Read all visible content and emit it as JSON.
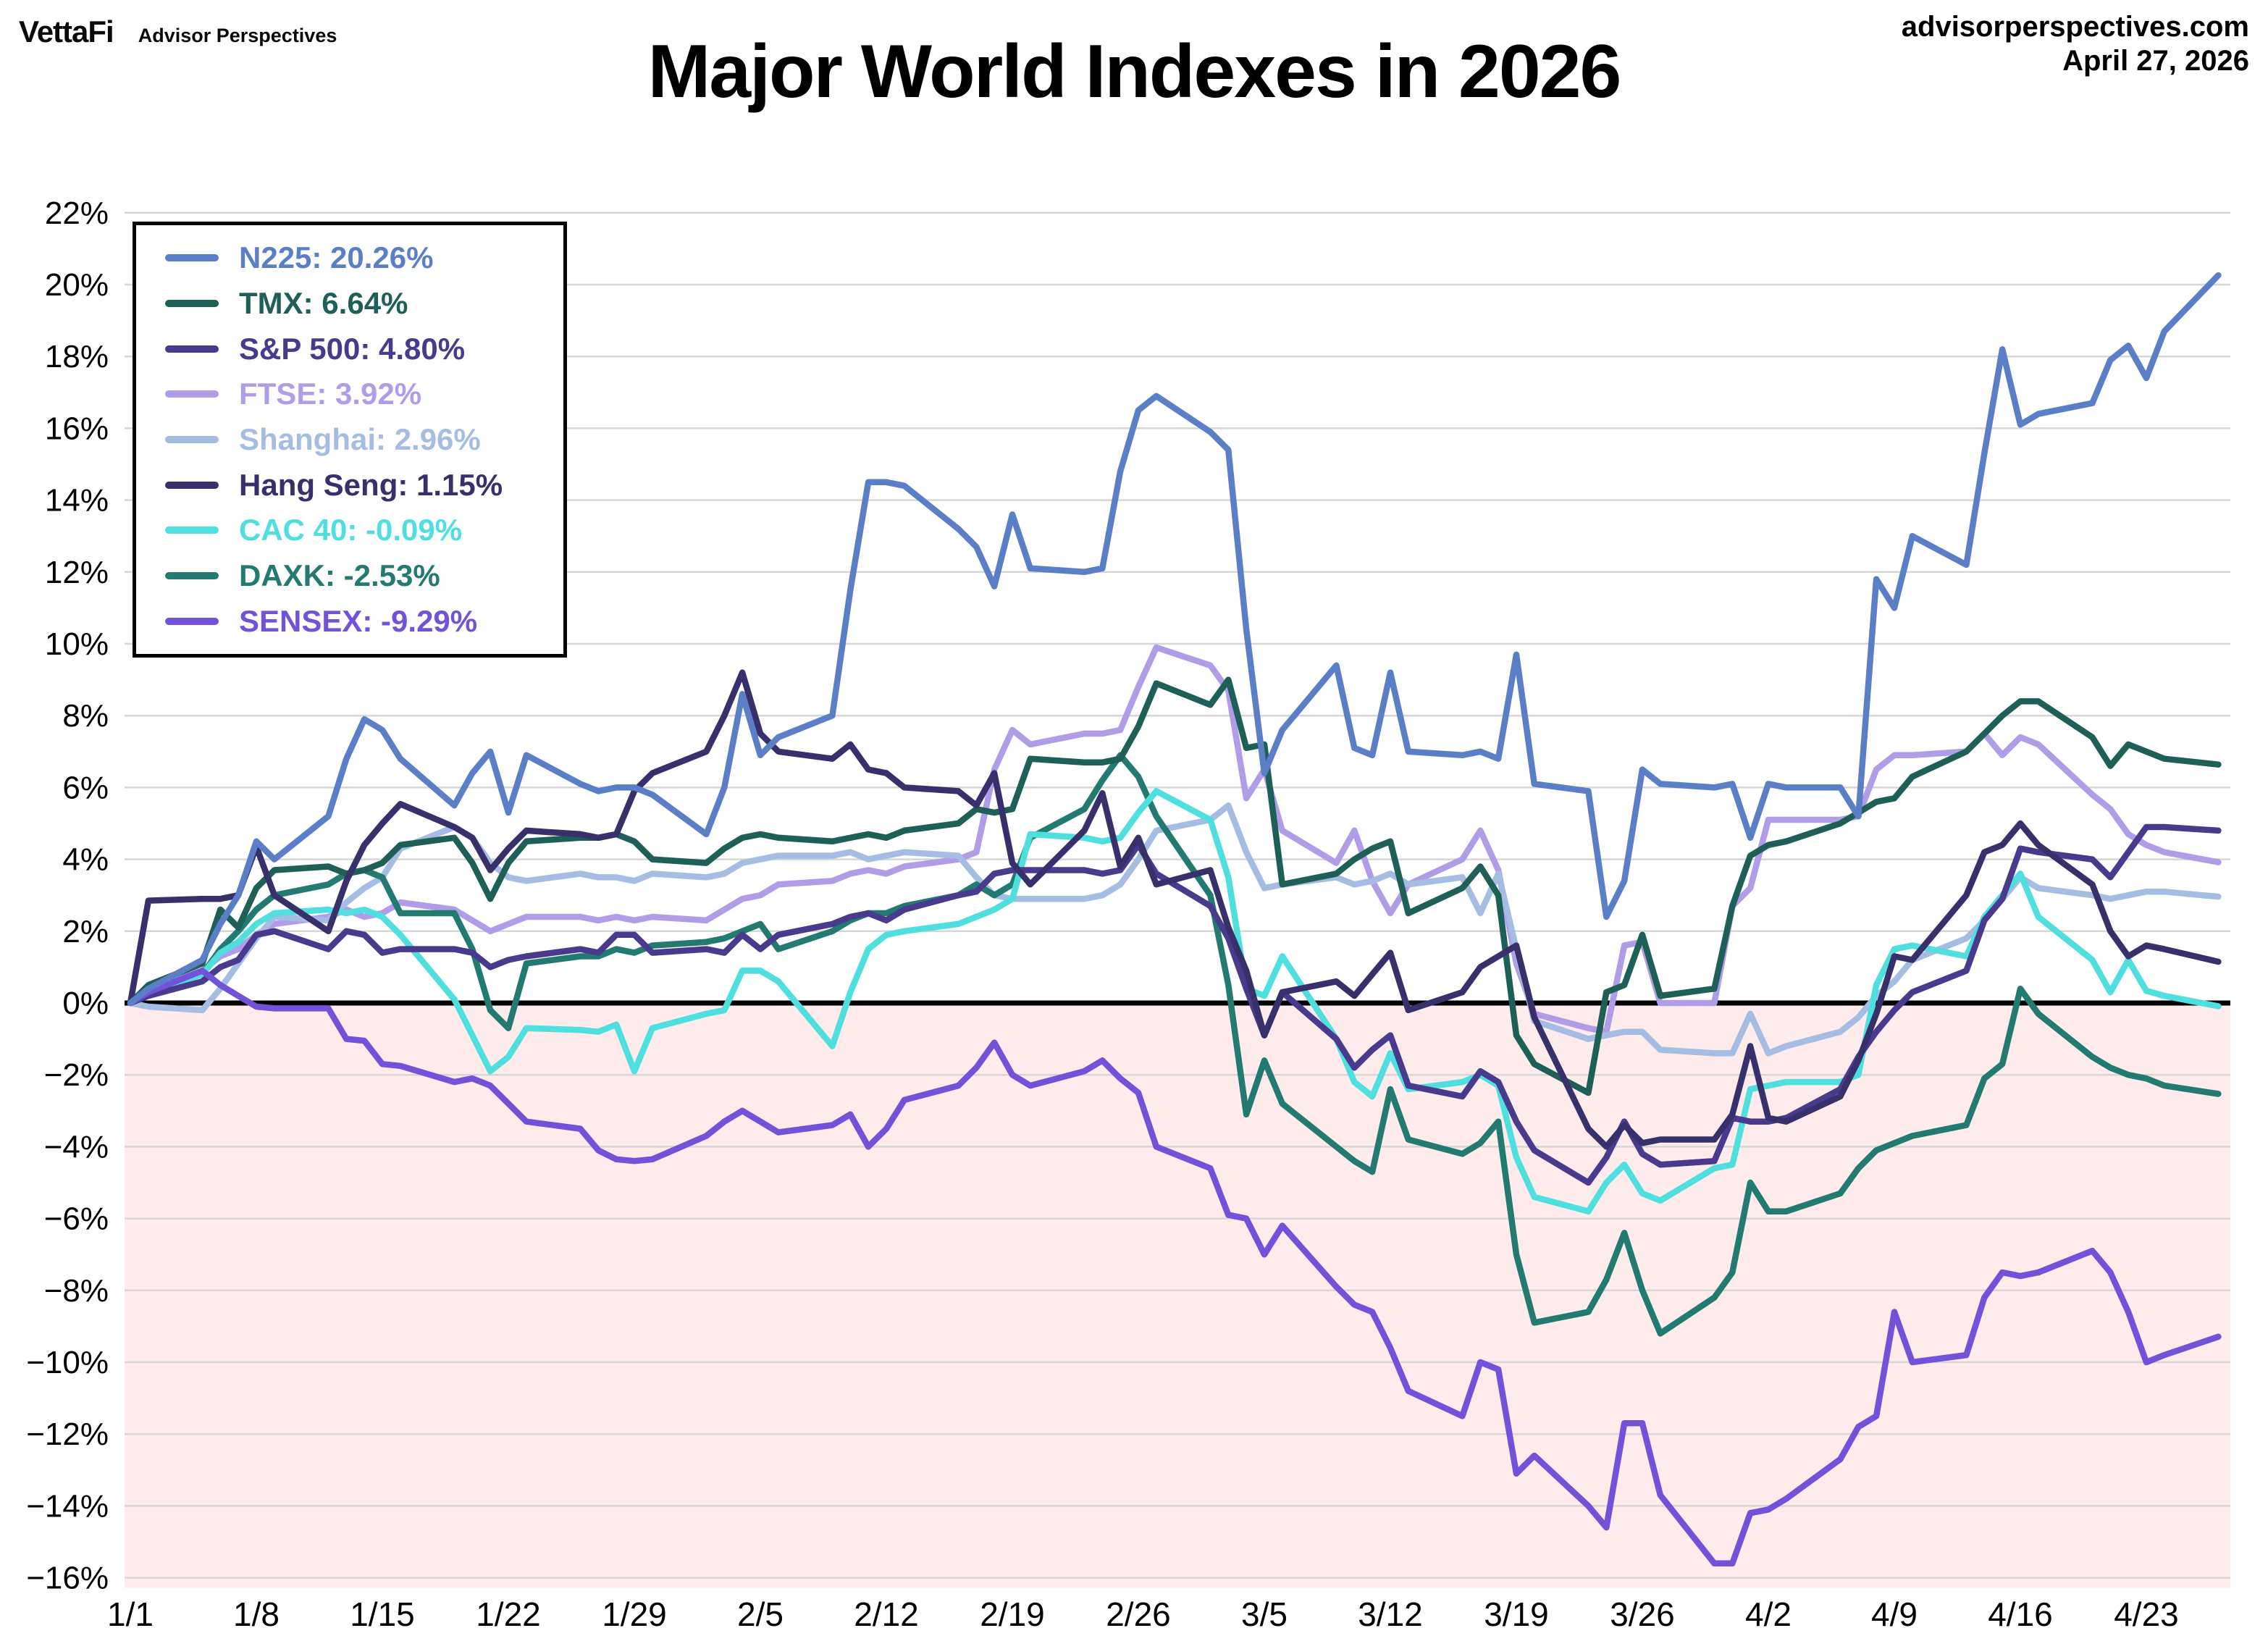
{
  "header": {
    "logo_primary": "VettaFi",
    "logo_secondary": "Advisor Perspectives",
    "site": "advisorperspectives.com",
    "date": "April 27, 2026"
  },
  "title": "Major World Indexes in 2026",
  "chart_data": {
    "type": "line",
    "title": "Major World Indexes in 2026",
    "xlabel": "",
    "ylabel": "",
    "ylim": [
      -16,
      22
    ],
    "ytick_step": 2,
    "ytick_suffix": "%",
    "grid": true,
    "legend_position": "top-left",
    "below_zero_fill": "#fdeceb",
    "zero_line_color": "#000000",
    "gridline_color": "#d6d6d6",
    "xticks": [
      "1/1",
      "1/8",
      "1/15",
      "1/22",
      "1/29",
      "2/5",
      "2/12",
      "2/19",
      "2/26",
      "3/5",
      "3/12",
      "3/19",
      "3/26",
      "4/2",
      "4/9",
      "4/16",
      "4/23"
    ],
    "x": [
      "1/1",
      "1/2",
      "1/5",
      "1/6",
      "1/7",
      "1/8",
      "1/9",
      "1/12",
      "1/13",
      "1/14",
      "1/15",
      "1/16",
      "1/19",
      "1/20",
      "1/21",
      "1/22",
      "1/23",
      "1/26",
      "1/27",
      "1/28",
      "1/29",
      "1/30",
      "2/2",
      "2/3",
      "2/4",
      "2/5",
      "2/6",
      "2/9",
      "2/10",
      "2/11",
      "2/12",
      "2/13",
      "2/16",
      "2/17",
      "2/18",
      "2/19",
      "2/20",
      "2/23",
      "2/24",
      "2/25",
      "2/26",
      "2/27",
      "3/2",
      "3/3",
      "3/4",
      "3/5",
      "3/6",
      "3/9",
      "3/10",
      "3/11",
      "3/12",
      "3/13",
      "3/16",
      "3/17",
      "3/18",
      "3/19",
      "3/20",
      "3/23",
      "3/24",
      "3/25",
      "3/26",
      "3/27",
      "3/30",
      "3/31",
      "4/1",
      "4/2",
      "4/3",
      "4/6",
      "4/7",
      "4/8",
      "4/9",
      "4/10",
      "4/13",
      "4/14",
      "4/15",
      "4/16",
      "4/17",
      "4/20",
      "4/21",
      "4/22",
      "4/23",
      "4/24",
      "4/27"
    ],
    "series": [
      {
        "name": "FTSE",
        "legend_label": "FTSE: 3.92%",
        "final_pct": 3.92,
        "color": "#b19ce8",
        "values": [
          0,
          0.4,
          0.9,
          1.3,
          1.5,
          1.9,
          2.2,
          2.4,
          2.6,
          2.4,
          2.5,
          2.8,
          2.6,
          2.3,
          2.0,
          2.2,
          2.4,
          2.4,
          2.3,
          2.4,
          2.3,
          2.4,
          2.3,
          2.6,
          2.9,
          3.0,
          3.3,
          3.4,
          3.6,
          3.7,
          3.6,
          3.8,
          4.0,
          4.2,
          6.5,
          7.6,
          7.2,
          7.5,
          7.5,
          7.6,
          8.8,
          9.9,
          9.4,
          8.7,
          5.7,
          6.5,
          4.8,
          3.9,
          4.8,
          3.4,
          2.5,
          3.3,
          4.0,
          4.8,
          3.7,
          1.1,
          -0.3,
          -0.7,
          -0.8,
          1.6,
          1.7,
          0.0,
          0.0,
          2.7,
          3.2,
          5.1,
          5.1,
          5.1,
          5.2,
          6.5,
          6.9,
          6.9,
          7.0,
          7.5,
          6.9,
          7.4,
          7.2,
          5.8,
          5.4,
          4.7,
          4.4,
          4.2,
          3.92
        ]
      },
      {
        "name": "Shanghai",
        "legend_label": "Shanghai: 2.96%",
        "final_pct": 2.96,
        "color": "#a5bde2",
        "values": [
          0,
          -0.1,
          -0.2,
          0.4,
          1.1,
          1.8,
          2.4,
          2.3,
          2.8,
          3.2,
          3.5,
          4.3,
          4.9,
          4.6,
          3.9,
          3.5,
          3.4,
          3.6,
          3.5,
          3.5,
          3.4,
          3.6,
          3.5,
          3.6,
          3.9,
          4.0,
          4.1,
          4.1,
          4.2,
          4.0,
          4.1,
          4.2,
          4.1,
          3.5,
          3.0,
          2.9,
          2.9,
          2.9,
          3.0,
          3.3,
          4.0,
          4.8,
          5.1,
          5.5,
          4.2,
          3.2,
          3.3,
          3.5,
          3.3,
          3.4,
          3.6,
          3.3,
          3.5,
          2.5,
          3.6,
          1.5,
          -0.5,
          -1.0,
          -0.9,
          -0.8,
          -0.8,
          -1.3,
          -1.4,
          -1.4,
          -0.3,
          -1.4,
          -1.2,
          -0.8,
          -0.4,
          0.2,
          0.6,
          1.2,
          1.8,
          2.3,
          2.9,
          3.5,
          3.2,
          3.0,
          2.9,
          3.0,
          3.1,
          3.1,
          2.96
        ]
      },
      {
        "name": "DAXK",
        "legend_label": "DAXK: -2.53%",
        "final_pct": -2.53,
        "color": "#227a70",
        "values": [
          0,
          0.3,
          0.8,
          1.5,
          2.0,
          2.6,
          3.0,
          3.3,
          3.6,
          3.7,
          3.5,
          2.5,
          2.5,
          1.5,
          -0.2,
          -0.7,
          1.1,
          1.3,
          1.3,
          1.5,
          1.4,
          1.6,
          1.7,
          1.8,
          2.0,
          2.2,
          1.5,
          2.0,
          2.3,
          2.5,
          2.5,
          2.7,
          3.0,
          3.3,
          3.0,
          3.3,
          4.6,
          5.4,
          6.2,
          6.9,
          6.3,
          5.2,
          3.0,
          0.5,
          -3.1,
          -1.6,
          -2.8,
          -4.0,
          -4.4,
          -4.7,
          -2.4,
          -3.8,
          -4.2,
          -3.9,
          -3.3,
          -7.0,
          -8.9,
          -8.6,
          -7.7,
          -6.4,
          -8.0,
          -9.2,
          -8.2,
          -7.5,
          -5.0,
          -5.8,
          -5.8,
          -5.3,
          -4.6,
          -4.1,
          -3.9,
          -3.7,
          -3.4,
          -2.1,
          -1.7,
          0.4,
          -0.3,
          -1.5,
          -1.8,
          -2.0,
          -2.1,
          -2.3,
          -2.53
        ]
      },
      {
        "name": "TMX",
        "legend_label": "TMX: 6.64%",
        "final_pct": 6.64,
        "color": "#1e5f58",
        "values": [
          0,
          0.5,
          1.1,
          2.6,
          2.1,
          3.2,
          3.7,
          3.8,
          3.6,
          3.7,
          3.9,
          4.4,
          4.6,
          3.9,
          2.9,
          3.9,
          4.5,
          4.6,
          4.6,
          4.7,
          4.5,
          4.0,
          3.9,
          4.3,
          4.6,
          4.7,
          4.6,
          4.5,
          4.6,
          4.7,
          4.6,
          4.8,
          5.0,
          5.4,
          5.3,
          5.4,
          6.8,
          6.7,
          6.7,
          6.8,
          7.7,
          8.9,
          8.3,
          9.0,
          7.1,
          7.2,
          3.3,
          3.6,
          4.0,
          4.3,
          4.5,
          2.5,
          3.2,
          3.8,
          3.0,
          -0.9,
          -1.7,
          -2.5,
          0.3,
          0.5,
          1.9,
          0.2,
          0.4,
          2.7,
          4.1,
          4.4,
          4.5,
          5.0,
          5.3,
          5.6,
          5.7,
          6.3,
          7.0,
          7.5,
          8.0,
          8.4,
          8.4,
          7.4,
          6.6,
          7.2,
          7.0,
          6.8,
          6.64
        ]
      },
      {
        "name": "CAC 40",
        "legend_label": "CAC 40: -0.09%",
        "final_pct": -0.09,
        "color": "#4fdfde",
        "values": [
          0,
          0.3,
          0.8,
          1.4,
          1.7,
          2.2,
          2.5,
          2.6,
          2.5,
          2.6,
          2.4,
          1.9,
          0.1,
          -0.9,
          -1.9,
          -1.5,
          -0.7,
          -0.75,
          -0.8,
          -0.6,
          -1.9,
          -0.7,
          -0.3,
          -0.2,
          0.9,
          0.9,
          0.6,
          -1.2,
          0.3,
          1.5,
          1.9,
          2.0,
          2.2,
          2.4,
          2.6,
          2.9,
          4.7,
          4.6,
          4.5,
          4.6,
          5.3,
          5.9,
          5.1,
          3.5,
          0.4,
          0.2,
          1.3,
          -1.0,
          -2.2,
          -2.6,
          -1.4,
          -2.4,
          -2.2,
          -2.0,
          -2.3,
          -4.3,
          -5.4,
          -5.8,
          -5.0,
          -4.5,
          -5.3,
          -5.5,
          -4.6,
          -4.5,
          -2.4,
          -2.3,
          -2.2,
          -2.2,
          -2.0,
          0.5,
          1.5,
          1.6,
          1.3,
          2.4,
          3.0,
          3.6,
          2.4,
          1.2,
          0.3,
          1.2,
          0.34,
          0.2,
          -0.09
        ]
      },
      {
        "name": "S&P 500",
        "legend_label": "S&P 500: 4.80%",
        "final_pct": 4.8,
        "color": "#493a8e",
        "values": [
          0,
          0.2,
          0.6,
          1.0,
          1.2,
          1.9,
          2.0,
          1.5,
          2.0,
          1.9,
          1.4,
          1.5,
          1.5,
          1.4,
          1.0,
          1.2,
          1.3,
          1.5,
          1.4,
          1.9,
          1.9,
          1.4,
          1.5,
          1.4,
          1.9,
          1.5,
          1.9,
          2.2,
          2.4,
          2.5,
          2.3,
          2.6,
          3.0,
          3.1,
          3.6,
          3.7,
          3.7,
          3.7,
          3.6,
          3.7,
          4.4,
          3.6,
          2.7,
          1.8,
          0.4,
          -0.9,
          0.3,
          -1.0,
          -1.8,
          -1.3,
          -0.9,
          -2.3,
          -2.6,
          -1.9,
          -2.2,
          -3.3,
          -4.1,
          -5.0,
          -4.3,
          -3.3,
          -4.2,
          -4.5,
          -4.4,
          -3.2,
          -3.3,
          -3.3,
          -3.2,
          -2.4,
          -1.5,
          -0.8,
          -0.2,
          0.3,
          0.9,
          2.3,
          2.9,
          4.3,
          4.2,
          4.0,
          3.5,
          4.2,
          4.9,
          4.9,
          4.8
        ]
      },
      {
        "name": "Hang Seng",
        "legend_label": "Hang Seng: 1.15%",
        "final_pct": 1.15,
        "color": "#38306b",
        "values": [
          0,
          2.85,
          2.9,
          2.9,
          3.0,
          4.35,
          3.0,
          2.0,
          3.4,
          4.4,
          5.0,
          5.54,
          4.9,
          4.6,
          3.7,
          4.3,
          4.8,
          4.7,
          4.6,
          4.7,
          5.9,
          6.4,
          7.0,
          8.0,
          9.2,
          7.5,
          7.0,
          6.8,
          7.2,
          6.5,
          6.4,
          6.0,
          5.9,
          5.5,
          6.4,
          3.9,
          3.3,
          4.8,
          5.84,
          3.8,
          4.6,
          3.3,
          3.7,
          2.1,
          0.9,
          -0.9,
          0.3,
          0.6,
          0.2,
          0.8,
          1.4,
          -0.2,
          0.3,
          1.0,
          1.3,
          1.6,
          -0.4,
          -3.5,
          -4.0,
          -3.4,
          -3.9,
          -3.8,
          -3.8,
          -3.1,
          -1.2,
          -3.2,
          -3.3,
          -2.6,
          -1.6,
          -0.3,
          1.3,
          1.2,
          3.0,
          4.2,
          4.4,
          5.0,
          4.4,
          3.3,
          2.0,
          1.3,
          1.6,
          1.5,
          1.15
        ]
      },
      {
        "name": "SENSEX",
        "legend_label": "SENSEX: -9.29%",
        "final_pct": -9.29,
        "color": "#7152d9",
        "values": [
          0,
          0.3,
          0.9,
          0.5,
          0.2,
          -0.1,
          -0.15,
          -0.15,
          -1.0,
          -1.05,
          -1.7,
          -1.75,
          -2.2,
          -2.1,
          -2.3,
          -2.8,
          -3.3,
          -3.5,
          -4.1,
          -4.35,
          -4.4,
          -4.35,
          -3.7,
          -3.3,
          -3.0,
          -3.3,
          -3.6,
          -3.4,
          -3.1,
          -4.0,
          -3.5,
          -2.7,
          -2.3,
          -1.8,
          -1.1,
          -2.0,
          -2.3,
          -1.9,
          -1.6,
          -2.1,
          -2.5,
          -4.0,
          -4.6,
          -5.9,
          -6.0,
          -7.0,
          -6.2,
          -7.9,
          -8.4,
          -8.6,
          -9.6,
          -10.8,
          -11.5,
          -10.0,
          -10.2,
          -13.1,
          -12.6,
          -14.0,
          -14.6,
          -11.7,
          -11.7,
          -13.7,
          -15.6,
          -15.6,
          -14.2,
          -14.1,
          -13.8,
          -12.7,
          -11.8,
          -11.5,
          -8.6,
          -10.0,
          -9.8,
          -8.2,
          -7.5,
          -7.6,
          -7.5,
          -6.9,
          -7.5,
          -8.6,
          -10.0,
          -9.8,
          -9.29
        ]
      },
      {
        "name": "N225",
        "legend_label": "N225: 20.26%",
        "final_pct": 20.26,
        "color": "#5b7fc7",
        "values": [
          0,
          0.4,
          1.2,
          2.2,
          3.0,
          4.5,
          4.0,
          5.2,
          6.8,
          7.9,
          7.6,
          6.8,
          5.5,
          6.4,
          7.0,
          5.3,
          6.9,
          6.1,
          5.9,
          6.0,
          6.0,
          5.8,
          4.7,
          6.0,
          8.6,
          6.9,
          7.4,
          8.0,
          11.5,
          14.5,
          14.5,
          14.4,
          13.2,
          12.7,
          11.6,
          13.6,
          12.1,
          12.0,
          12.1,
          14.8,
          16.5,
          16.9,
          15.9,
          15.4,
          10.4,
          6.4,
          7.6,
          9.4,
          7.1,
          6.9,
          9.2,
          7.0,
          6.9,
          7.0,
          6.8,
          9.7,
          6.1,
          5.9,
          2.4,
          3.4,
          6.5,
          6.1,
          6.0,
          6.1,
          4.6,
          6.1,
          6.0,
          6.0,
          5.2,
          11.8,
          11.0,
          13.0,
          12.2,
          15.3,
          18.2,
          16.1,
          16.4,
          16.7,
          17.9,
          18.3,
          17.4,
          18.7,
          20.26
        ]
      }
    ],
    "legend_order": [
      "N225",
      "TMX",
      "S&P 500",
      "FTSE",
      "Shanghai",
      "Hang Seng",
      "CAC 40",
      "DAXK",
      "SENSEX"
    ]
  }
}
